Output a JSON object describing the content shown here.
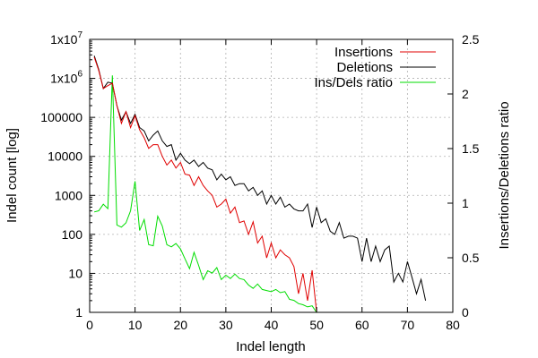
{
  "chart_data": {
    "type": "line",
    "title": "",
    "xlabel": "Indel length",
    "ylabel_left": "Indel count [log]",
    "ylabel_right": "Insertions/Deletions ratio",
    "xlim": [
      0,
      80
    ],
    "ylim_left": [
      1,
      10000000
    ],
    "ylim_right": [
      0,
      2.5
    ],
    "left_log_scale": true,
    "grid": true,
    "legend_position": "top-right",
    "x_ticks": [
      "0",
      "10",
      "20",
      "30",
      "40",
      "50",
      "60",
      "70",
      "80"
    ],
    "y_left_ticks": [
      {
        "value": 1,
        "label": "1"
      },
      {
        "value": 10,
        "label": "10"
      },
      {
        "value": 100,
        "label": "100"
      },
      {
        "value": 1000,
        "label": "1000"
      },
      {
        "value": 10000,
        "label": "10000"
      },
      {
        "value": 100000,
        "label": "100000"
      },
      {
        "value": 1000000,
        "label": "1x10",
        "exp": "6"
      },
      {
        "value": 10000000,
        "label": "1x10",
        "exp": "7"
      }
    ],
    "y_right_ticks": [
      "0",
      "0.5",
      "1",
      "1.5",
      "2",
      "2.5"
    ],
    "series": [
      {
        "name": "Insertions",
        "color": "#e00000",
        "axis": "left",
        "x": [
          1,
          2,
          3,
          4,
          5,
          6,
          7,
          8,
          9,
          10,
          11,
          12,
          13,
          14,
          15,
          16,
          17,
          18,
          19,
          20,
          21,
          22,
          23,
          24,
          25,
          26,
          27,
          28,
          29,
          30,
          31,
          32,
          33,
          34,
          35,
          36,
          37,
          38,
          39,
          40,
          41,
          42,
          43,
          44,
          45,
          46,
          47,
          48,
          49,
          50
        ],
        "y": [
          3500000,
          1600000,
          550000,
          650000,
          750000,
          200000,
          70000,
          140000,
          55000,
          110000,
          48000,
          30000,
          16000,
          20000,
          20000,
          10000,
          6000,
          8000,
          5000,
          7000,
          3500,
          3300,
          1800,
          3000,
          1800,
          1300,
          1000,
          500,
          600,
          800,
          350,
          500,
          200,
          220,
          100,
          210,
          60,
          90,
          25,
          60,
          25,
          40,
          30,
          25,
          15,
          3,
          10,
          2,
          12,
          1
        ]
      },
      {
        "name": "Deletions",
        "color": "#000000",
        "axis": "left",
        "x": [
          1,
          2,
          3,
          4,
          5,
          6,
          7,
          8,
          9,
          10,
          11,
          12,
          13,
          14,
          15,
          16,
          17,
          18,
          19,
          20,
          21,
          22,
          23,
          24,
          25,
          26,
          27,
          28,
          29,
          30,
          31,
          32,
          33,
          34,
          35,
          36,
          37,
          38,
          39,
          40,
          41,
          42,
          43,
          44,
          45,
          46,
          47,
          48,
          49,
          50,
          51,
          52,
          53,
          54,
          55,
          56,
          57,
          58,
          59,
          60,
          61,
          62,
          63,
          64,
          65,
          66,
          67,
          68,
          69,
          70,
          71,
          72,
          73,
          74
        ],
        "y": [
          3800000,
          1700000,
          550000,
          800000,
          750000,
          200000,
          85000,
          140000,
          70000,
          120000,
          55000,
          45000,
          25000,
          35000,
          45000,
          25000,
          18000,
          20000,
          8000,
          12000,
          8000,
          6500,
          8000,
          5500,
          7000,
          5000,
          4500,
          2500,
          3500,
          2500,
          3000,
          1800,
          2000,
          2000,
          1300,
          1600,
          1000,
          1300,
          600,
          1000,
          600,
          900,
          500,
          600,
          450,
          400,
          400,
          600,
          150,
          500,
          200,
          250,
          120,
          100,
          200,
          80,
          90,
          90,
          80,
          20,
          80,
          20,
          50,
          20,
          40,
          50,
          6,
          10,
          6,
          20,
          8,
          3,
          7,
          2
        ]
      },
      {
        "name": "Ins/Dels ratio",
        "color": "#00dd00",
        "axis": "right",
        "x": [
          1,
          2,
          3,
          4,
          5,
          6,
          7,
          8,
          9,
          10,
          11,
          12,
          13,
          14,
          15,
          16,
          17,
          18,
          19,
          20,
          21,
          22,
          23,
          24,
          25,
          26,
          27,
          28,
          29,
          30,
          31,
          32,
          33,
          34,
          35,
          36,
          37,
          38,
          39,
          40,
          41,
          42,
          43,
          44,
          45,
          46,
          47,
          48,
          49,
          50
        ],
        "y": [
          0.92,
          0.93,
          0.99,
          0.95,
          2.17,
          0.8,
          0.78,
          0.82,
          0.93,
          1.2,
          0.75,
          0.85,
          0.62,
          0.61,
          0.88,
          0.79,
          0.62,
          0.6,
          0.63,
          0.58,
          0.49,
          0.4,
          0.55,
          0.43,
          0.3,
          0.38,
          0.36,
          0.41,
          0.3,
          0.34,
          0.31,
          0.35,
          0.31,
          0.3,
          0.25,
          0.22,
          0.26,
          0.21,
          0.2,
          0.19,
          0.21,
          0.18,
          0.19,
          0.12,
          0.11,
          0.08,
          0.07,
          0.05,
          0.06,
          0.0
        ]
      }
    ]
  }
}
